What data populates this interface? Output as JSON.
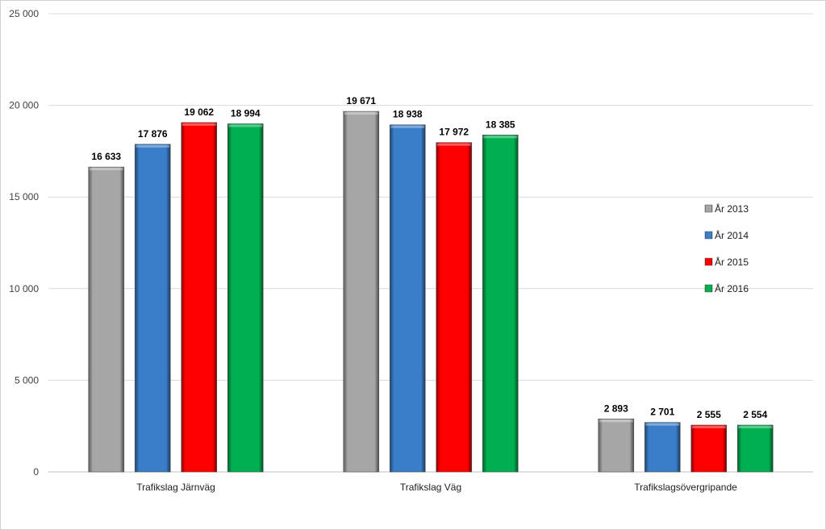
{
  "chart_data": {
    "type": "bar",
    "categories": [
      "Trafikslag Järnväg",
      "Trafikslag Väg",
      "Trafikslagsövergripande"
    ],
    "series": [
      {
        "name": "År 2013",
        "color": "#a6a6a6",
        "values": [
          16633,
          19671,
          2893
        ],
        "labels": [
          "16 633",
          "19 671",
          "2 893"
        ]
      },
      {
        "name": "År 2014",
        "color": "#3a7dc9",
        "values": [
          17876,
          18938,
          2701
        ],
        "labels": [
          "17 876",
          "18 938",
          "2 701"
        ]
      },
      {
        "name": "År 2015",
        "color": "#ff0000",
        "values": [
          19062,
          17972,
          2555
        ],
        "labels": [
          "19 062",
          "17 972",
          "2 555"
        ]
      },
      {
        "name": "År 2016",
        "color": "#00b050",
        "values": [
          18994,
          18385,
          2554
        ],
        "labels": [
          "18 994",
          "18 385",
          "2 554"
        ]
      }
    ],
    "ylim": [
      0,
      25000
    ],
    "yticks": [
      0,
      5000,
      10000,
      15000,
      20000,
      25000
    ],
    "ytick_labels": [
      "0",
      "5 000",
      "10 000",
      "15 000",
      "20 000",
      "25 000"
    ],
    "grid": true,
    "legend_position": "right"
  }
}
